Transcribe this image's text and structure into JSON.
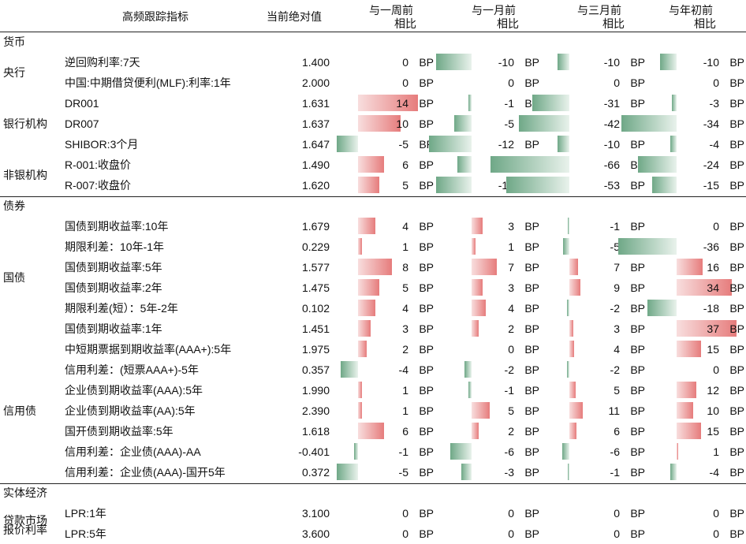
{
  "header": {
    "indicator": "高频跟踪指标",
    "current": "当前绝对值",
    "cols": [
      [
        "与一周前",
        "相比"
      ],
      [
        "与一月前",
        "相比"
      ],
      [
        "与三月前",
        "相比"
      ],
      [
        "与年初前",
        "相比"
      ]
    ]
  },
  "unit": "BP",
  "col_scales": [
    14,
    12,
    66,
    37
  ],
  "rows": [
    {
      "section": "货币",
      "ind": "",
      "val": "",
      "d": []
    },
    {
      "section": "",
      "ind": "逆回购利率:7天",
      "val": "1.400",
      "d": [
        0,
        -10,
        -10,
        -10
      ]
    },
    {
      "section": "",
      "ind": "中国:中期借贷便利(MLF):利率:1年",
      "val": "2.000",
      "d": [
        0,
        0,
        0,
        0
      ]
    },
    {
      "section": "",
      "ind": "DR001",
      "val": "1.631",
      "d": [
        14,
        -1,
        -31,
        -3
      ]
    },
    {
      "section": "",
      "ind": "DR007",
      "val": "1.637",
      "d": [
        10,
        -5,
        -42,
        -34
      ]
    },
    {
      "section": "",
      "ind": "SHIBOR:3个月",
      "val": "1.647",
      "d": [
        -5,
        -12,
        -10,
        -4
      ]
    },
    {
      "section": "",
      "ind": "R-001:收盘价",
      "val": "1.490",
      "d": [
        6,
        -4,
        -66,
        -24
      ]
    },
    {
      "section": "",
      "ind": "R-007:收盘价",
      "val": "1.620",
      "d": [
        5,
        -10,
        -53,
        -15
      ]
    },
    {
      "section": "债券",
      "ind": "",
      "val": "",
      "d": []
    },
    {
      "section": "",
      "ind": "国债到期收益率:10年",
      "val": "1.679",
      "d": [
        4,
        3,
        -1,
        0
      ]
    },
    {
      "section": "",
      "ind": "期限利差：10年-1年",
      "val": "0.229",
      "d": [
        1,
        1,
        -5,
        -36
      ]
    },
    {
      "section": "",
      "ind": "国债到期收益率:5年",
      "val": "1.577",
      "d": [
        8,
        7,
        7,
        16
      ]
    },
    {
      "section": "",
      "ind": "国债到期收益率:2年",
      "val": "1.475",
      "d": [
        5,
        3,
        9,
        34
      ]
    },
    {
      "section": "",
      "ind": "期限利差(短）：5年-2年",
      "val": "0.102",
      "d": [
        4,
        4,
        -2,
        -18
      ]
    },
    {
      "section": "",
      "ind": "国债到期收益率:1年",
      "val": "1.451",
      "d": [
        3,
        2,
        3,
        37
      ]
    },
    {
      "section": "",
      "ind": "中短期票据到期收益率(AAA+):5年",
      "val": "1.975",
      "d": [
        2,
        0,
        4,
        15
      ]
    },
    {
      "section": "",
      "ind": "信用利差：(短票AAA+)-5年",
      "val": "0.357",
      "d": [
        -4,
        -2,
        -2,
        0
      ]
    },
    {
      "section": "",
      "ind": "企业债到期收益率(AAA):5年",
      "val": "1.990",
      "d": [
        1,
        -1,
        5,
        12
      ]
    },
    {
      "section": "",
      "ind": "企业债到期收益率(AA):5年",
      "val": "2.390",
      "d": [
        1,
        5,
        11,
        10
      ]
    },
    {
      "section": "",
      "ind": "国开债到期收益率:5年",
      "val": "1.618",
      "d": [
        6,
        2,
        6,
        15
      ]
    },
    {
      "section": "",
      "ind": "信用利差：企业债(AAA)-AA",
      "val": "-0.401",
      "d": [
        -1,
        -6,
        -6,
        1
      ]
    },
    {
      "section": "",
      "ind": "信用利差：企业债(AAA)-国开5年",
      "val": "0.372",
      "d": [
        -5,
        -3,
        -1,
        -4
      ]
    },
    {
      "section": "实体经济",
      "ind": "",
      "val": "",
      "d": []
    },
    {
      "section": "",
      "ind": "LPR:1年",
      "val": "3.100",
      "d": [
        0,
        0,
        0,
        0
      ]
    },
    {
      "section": "",
      "ind": "LPR:5年",
      "val": "3.600",
      "d": [
        0,
        0,
        0,
        0
      ]
    }
  ],
  "groups": [
    {
      "label": "央行",
      "rows": [
        1,
        2
      ]
    },
    {
      "label": "银行机构",
      "rows": [
        3,
        5
      ]
    },
    {
      "label": "非银机构",
      "rows": [
        6,
        7
      ]
    },
    {
      "label": "国债",
      "rows": [
        9,
        14
      ]
    },
    {
      "label": "信用债",
      "rows": [
        15,
        21
      ]
    },
    {
      "label": "贷款市场",
      "rows": [
        23,
        23
      ]
    },
    {
      "label": "报价利率",
      "rows": [
        24,
        24
      ]
    }
  ]
}
